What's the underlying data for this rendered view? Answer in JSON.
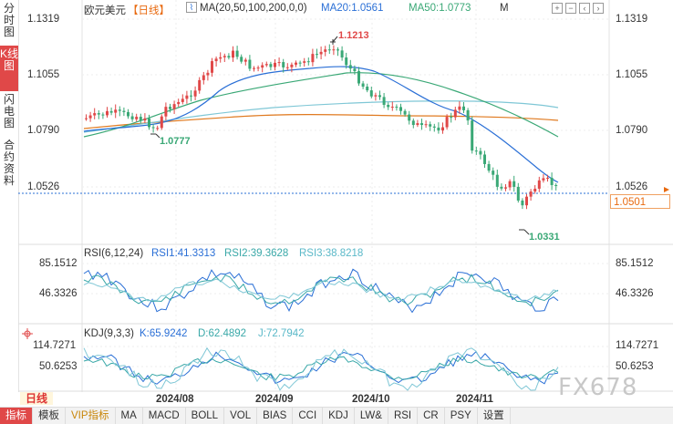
{
  "sidebar": [
    {
      "label": "分时图",
      "active": false
    },
    {
      "label": "K线图",
      "active": true
    },
    {
      "label": "闪电图",
      "active": false
    },
    {
      "label": "合约资料",
      "active": false
    }
  ],
  "header": {
    "symbol": "欧元美元",
    "period": "【日线】",
    "ma_params": "MA(20,50,100,200,0,0)",
    "ma20": "MA20:1.0561",
    "ma50": "MA50:1.0773",
    "ma_more": "M"
  },
  "price_axis": {
    "labels": [
      "1.1319",
      "1.1055",
      "1.0790",
      "1.0526"
    ]
  },
  "annotations": {
    "high": "1.1213",
    "low": "1.0331",
    "mid_low": "1.0777"
  },
  "current_price": "1.0501",
  "rsi": {
    "title": "RSI(6,12,24)",
    "rsi1": "RSI1:41.3313",
    "rsi2": "RSI2:39.3628",
    "rsi3": "RSI3:38.8218",
    "labels": [
      "85.1512",
      "46.3326"
    ]
  },
  "kdj": {
    "title": "KDJ(9,3,3)",
    "k": "K:65.9242",
    "d": "D:62.4892",
    "j": "J:72.7942",
    "labels": [
      "114.7271",
      "50.6253"
    ]
  },
  "period_button": "日线",
  "dates": [
    "2024/08",
    "2024/09",
    "2024/10",
    "2024/11"
  ],
  "toolbar": [
    {
      "label": "指标",
      "active": true
    },
    {
      "label": "模板",
      "active": false
    },
    {
      "label": "VIP指标",
      "vip": true
    },
    {
      "label": "MA"
    },
    {
      "label": "MACD"
    },
    {
      "label": "BOLL"
    },
    {
      "label": "VOL"
    },
    {
      "label": "BIAS"
    },
    {
      "label": "CCI"
    },
    {
      "label": "KDJ"
    },
    {
      "label": "LW&"
    },
    {
      "label": "RSI"
    },
    {
      "label": "CR"
    },
    {
      "label": "PSY"
    },
    {
      "label": "设置"
    }
  ],
  "watermark": "FX678",
  "colors": {
    "up": "#e04848",
    "down": "#3aa876",
    "ma20": "#2a6fd6",
    "ma50": "#3aa876",
    "ma100": "#e07a20",
    "ma200": "#7fc7d6"
  },
  "chart_data": {
    "type": "candlestick",
    "y_range": [
      1.0331,
      1.1319
    ],
    "high": 1.1213,
    "low": 1.0331,
    "last": 1.0501
  }
}
